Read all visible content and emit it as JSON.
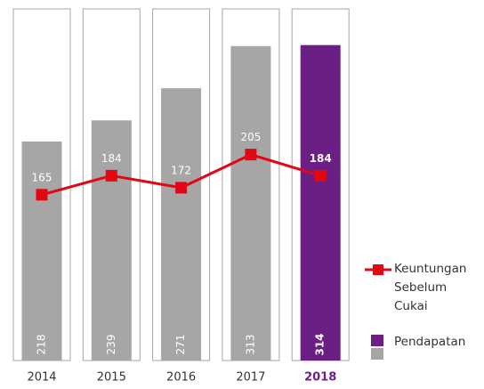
{
  "chart_data": {
    "type": "bar_line",
    "categories": [
      "2014",
      "2015",
      "2016",
      "2017",
      "2018"
    ],
    "ylim": [
      0,
      350
    ],
    "series": [
      {
        "name": "Pendapatan",
        "type": "bar",
        "colors": [
          "#a6a6a6",
          "#a6a6a6",
          "#a6a6a6",
          "#a6a6a6",
          "#6b1f84"
        ],
        "values": [
          218,
          239,
          271,
          313,
          314
        ]
      },
      {
        "name": "Keuntungan Sebelum Cukai",
        "type": "line",
        "color": "#e30613",
        "values": [
          165,
          184,
          172,
          205,
          184
        ]
      }
    ],
    "highlight_color": "#6b1f84"
  }
}
